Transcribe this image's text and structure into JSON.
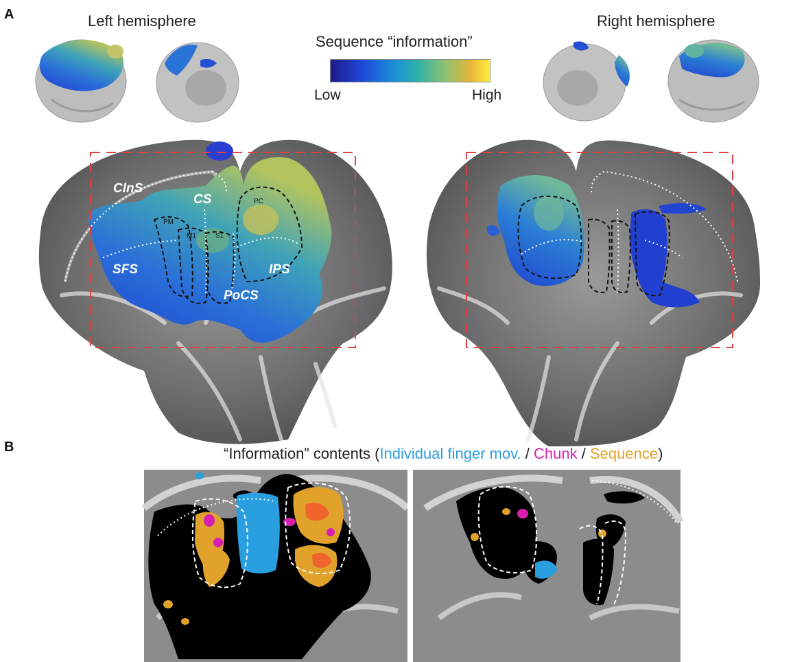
{
  "panel_a": {
    "letter": "A",
    "left_title": "Left hemisphere",
    "right_title": "Right hemisphere",
    "colorbar": {
      "title": "Sequence “information”",
      "low": "Low",
      "high": "High"
    },
    "left_labels": {
      "clns": "ClnS",
      "cs": "CS",
      "sfs": "SFS",
      "ips": "IPS",
      "pocs": "PoCS",
      "pm": "PM",
      "m1": "M1",
      "s1": "S1",
      "pc": "PC"
    }
  },
  "panel_b": {
    "letter": "B",
    "title_prefix": "“Information” contents (",
    "legend": {
      "finger": "Individual finger mov.",
      "sep1": " / ",
      "chunk": "Chunk",
      "sep2": " / ",
      "sequence": "Sequence"
    },
    "title_suffix": ")",
    "colors": {
      "finger": "#2a9fe0",
      "chunk": "#d61fb0",
      "sequence": "#e0a22b"
    }
  }
}
